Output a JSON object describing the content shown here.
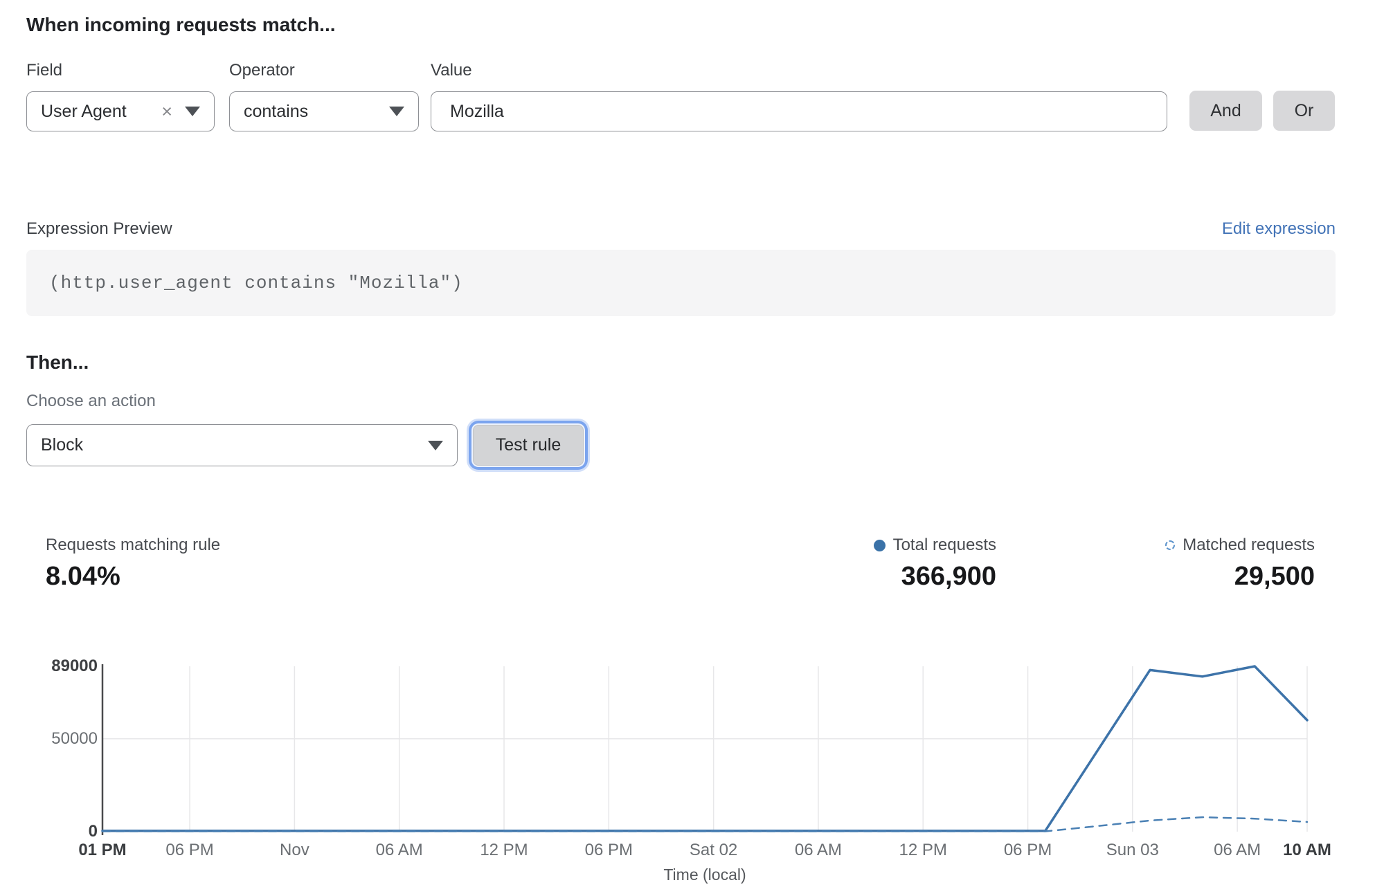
{
  "rule_builder": {
    "title": "When incoming requests match...",
    "field": {
      "label": "Field",
      "value": "User Agent",
      "clear_icon": "×"
    },
    "operator": {
      "label": "Operator",
      "value": "contains"
    },
    "value": {
      "label": "Value",
      "value": "Mozilla"
    },
    "and_button": "And",
    "or_button": "Or"
  },
  "expression": {
    "label": "Expression Preview",
    "edit_link": "Edit expression",
    "code": "(http.user_agent contains \"Mozilla\")"
  },
  "action": {
    "title": "Then...",
    "label": "Choose an action",
    "value": "Block",
    "test_button": "Test rule"
  },
  "stats": {
    "matching": {
      "label": "Requests matching rule",
      "value": "8.04%"
    },
    "total": {
      "label": "Total requests",
      "value": "366,900"
    },
    "matched": {
      "label": "Matched requests",
      "value": "29,500"
    }
  },
  "chart_data": {
    "type": "line",
    "title": "",
    "xlabel": "Time (local)",
    "ylabel": "",
    "ylim": [
      0,
      89000
    ],
    "x_range_hours": [
      0,
      69
    ],
    "grid": true,
    "legend_position": "top-right",
    "y_ticks": [
      {
        "value": 0,
        "label": "0",
        "bold": true
      },
      {
        "value": 50000,
        "label": "50000",
        "bold": false
      },
      {
        "value": 89000,
        "label": "89000",
        "bold": true
      }
    ],
    "x_ticks": [
      {
        "t": 0,
        "label": "01 PM",
        "bold": true
      },
      {
        "t": 5,
        "label": "06 PM",
        "bold": false
      },
      {
        "t": 11,
        "label": "Nov",
        "bold": false
      },
      {
        "t": 17,
        "label": "06 AM",
        "bold": false
      },
      {
        "t": 23,
        "label": "12 PM",
        "bold": false
      },
      {
        "t": 29,
        "label": "06 PM",
        "bold": false
      },
      {
        "t": 35,
        "label": "Sat 02",
        "bold": false
      },
      {
        "t": 41,
        "label": "06 AM",
        "bold": false
      },
      {
        "t": 47,
        "label": "12 PM",
        "bold": false
      },
      {
        "t": 53,
        "label": "06 PM",
        "bold": false
      },
      {
        "t": 59,
        "label": "Sun 03",
        "bold": false
      },
      {
        "t": 65,
        "label": "06 AM",
        "bold": false
      },
      {
        "t": 69,
        "label": "10 AM",
        "bold": true
      }
    ],
    "series": [
      {
        "name": "Total requests",
        "style": "solid",
        "color": "#3d73a9",
        "width": 3.5,
        "points": [
          [
            0,
            400
          ],
          [
            54,
            400
          ],
          [
            60,
            87000
          ],
          [
            63,
            83500
          ],
          [
            66,
            89000
          ],
          [
            69,
            60000
          ]
        ]
      },
      {
        "name": "Matched requests",
        "style": "dashed",
        "color": "#4a80b4",
        "width": 2.5,
        "points": [
          [
            0,
            150
          ],
          [
            54,
            150
          ],
          [
            57,
            3000
          ],
          [
            60,
            6000
          ],
          [
            63,
            7800
          ],
          [
            66,
            7000
          ],
          [
            69,
            5200
          ]
        ]
      }
    ],
    "colors": {
      "axis": "#4a4b4d",
      "gridline": "#e7e7e9"
    }
  }
}
